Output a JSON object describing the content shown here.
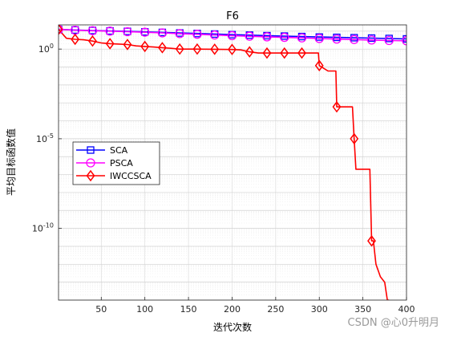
{
  "chart_data": {
    "type": "line",
    "title": "F6",
    "xlabel": "迭代次数",
    "ylabel": "平均目标函数值",
    "xlim": [
      1,
      400
    ],
    "xticks": [
      50,
      100,
      150,
      200,
      250,
      300,
      350,
      400
    ],
    "yscale": "log",
    "ylim_exp": [
      -14,
      1.35
    ],
    "yticks": [
      {
        "exp": 0,
        "label": "10",
        "sup": "0"
      },
      {
        "exp": -5,
        "label": "10",
        "sup": "-5"
      },
      {
        "exp": -10,
        "label": "10",
        "sup": "-10"
      }
    ],
    "grid": true,
    "legend_position": "mid-left",
    "series": [
      {
        "name": "SCA",
        "color": "#0000ff",
        "marker": "square",
        "x": [
          1,
          20,
          40,
          60,
          80,
          100,
          120,
          140,
          160,
          180,
          200,
          220,
          240,
          260,
          280,
          300,
          320,
          340,
          360,
          380,
          400
        ],
        "y": [
          12.6,
          11.6,
          10.9,
          10.3,
          9.7,
          9.1,
          8.5,
          7.9,
          7.4,
          6.9,
          6.4,
          6.0,
          5.6,
          5.3,
          5.0,
          4.7,
          4.5,
          4.3,
          4.1,
          3.9,
          3.7
        ]
      },
      {
        "name": "PSCA",
        "color": "#ff00ff",
        "marker": "circle",
        "x": [
          1,
          20,
          40,
          60,
          80,
          100,
          120,
          140,
          160,
          180,
          200,
          220,
          240,
          260,
          280,
          300,
          320,
          340,
          360,
          380,
          400
        ],
        "y": [
          12.6,
          11.3,
          10.6,
          10.0,
          9.3,
          8.7,
          8.0,
          7.3,
          6.7,
          6.1,
          5.6,
          5.2,
          4.8,
          4.5,
          4.2,
          3.9,
          3.6,
          3.4,
          3.2,
          3.0,
          2.9
        ]
      },
      {
        "name": "IWCCSCA",
        "color": "#ff0000",
        "marker": "diamond",
        "x": [
          1,
          10,
          20,
          30,
          40,
          50,
          60,
          70,
          80,
          90,
          100,
          110,
          120,
          130,
          140,
          150,
          160,
          170,
          180,
          190,
          200,
          210,
          220,
          230,
          240,
          250,
          260,
          270,
          280,
          290,
          299,
          300,
          310,
          319,
          320,
          330,
          338,
          340,
          342,
          350,
          355,
          358,
          360,
          362,
          365,
          370,
          375,
          378,
          380
        ],
        "y": [
          12.6,
          4.0,
          3.5,
          3.3,
          2.8,
          2.2,
          2.0,
          1.9,
          1.8,
          1.5,
          1.4,
          1.3,
          1.2,
          1.1,
          1.0,
          1.0,
          1.0,
          0.99,
          0.98,
          0.96,
          0.95,
          0.9,
          0.7,
          0.6,
          0.6,
          0.6,
          0.6,
          0.6,
          0.6,
          0.6,
          0.6,
          0.12,
          0.06,
          0.06,
          0.0006,
          0.0006,
          0.0006,
          1e-05,
          2e-07,
          2e-07,
          2e-07,
          2e-07,
          2e-11,
          2e-11,
          1e-12,
          2e-13,
          1e-13,
          1e-14,
          1e-14
        ]
      }
    ],
    "markers": [
      {
        "series": 0,
        "x": [
          1,
          20,
          40,
          60,
          80,
          100,
          120,
          140,
          160,
          180,
          200,
          220,
          240,
          260,
          280,
          300,
          320,
          340,
          360,
          380,
          400
        ]
      },
      {
        "series": 1,
        "x": [
          1,
          20,
          40,
          60,
          80,
          100,
          120,
          140,
          160,
          180,
          200,
          220,
          240,
          260,
          280,
          300,
          320,
          340,
          360,
          380,
          400
        ]
      },
      {
        "series": 2,
        "x": [
          1,
          20,
          40,
          60,
          80,
          100,
          120,
          140,
          160,
          180,
          200,
          220,
          240,
          260,
          280,
          300,
          320,
          340,
          360
        ]
      }
    ]
  },
  "watermark": "CSDN @心0升明月"
}
